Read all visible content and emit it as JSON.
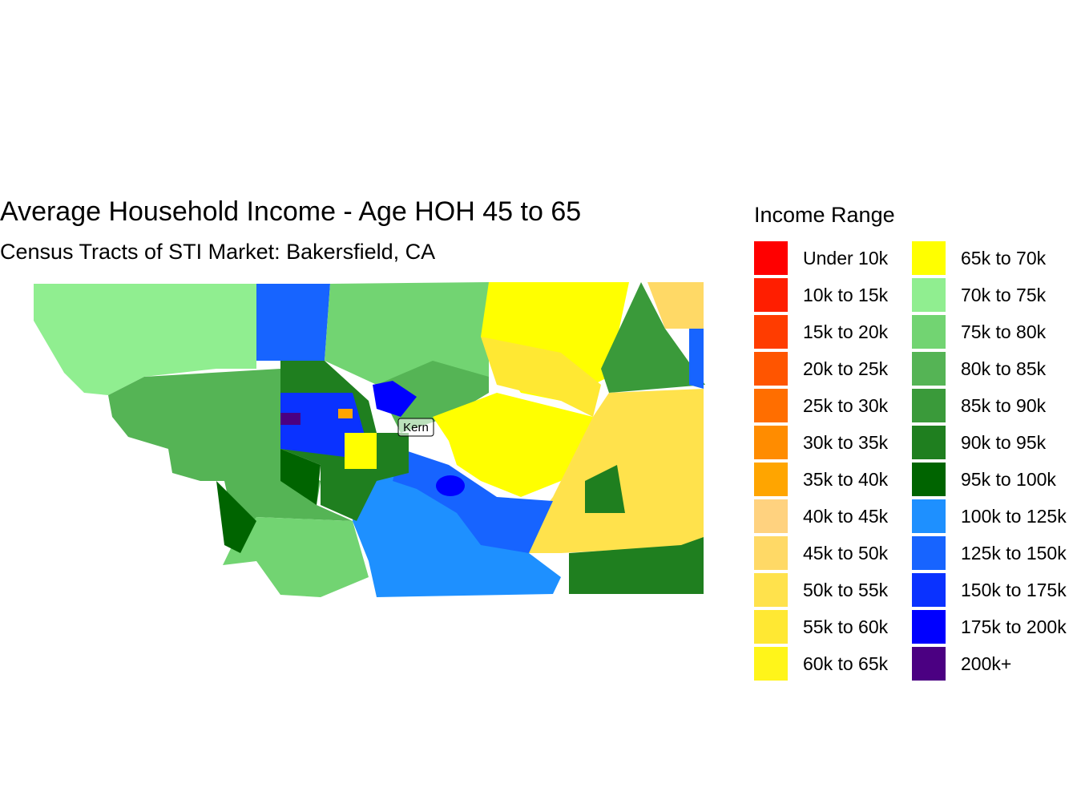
{
  "title": "Average Household Income - Age HOH 45 to 65",
  "subtitle": "Census Tracts of STI Market: Bakersfield, CA",
  "labels": [
    "Kern"
  ],
  "legend": {
    "title": "Income Range",
    "items": [
      {
        "name": "Under 10k",
        "color": "#ff0000"
      },
      {
        "name": "10k to 15k",
        "color": "#ff1e00"
      },
      {
        "name": "15k to 20k",
        "color": "#ff3c00"
      },
      {
        "name": "20k to 25k",
        "color": "#ff5500"
      },
      {
        "name": "25k to 30k",
        "color": "#ff6e00"
      },
      {
        "name": "30k to 35k",
        "color": "#ff8c00"
      },
      {
        "name": "35k to 40k",
        "color": "#ffa500"
      },
      {
        "name": "40k to 45k",
        "color": "#ffd27f"
      },
      {
        "name": "45k to 50k",
        "color": "#ffd966"
      },
      {
        "name": "50k to 55k",
        "color": "#ffe24c"
      },
      {
        "name": "55k to 60k",
        "color": "#ffe833"
      },
      {
        "name": "60k to 65k",
        "color": "#fff51a"
      },
      {
        "name": "65k to 70k",
        "color": "#ffff00"
      },
      {
        "name": "70k to 75k",
        "color": "#90ee90"
      },
      {
        "name": "75k to 80k",
        "color": "#72d472"
      },
      {
        "name": "80k to 85k",
        "color": "#55b455"
      },
      {
        "name": "85k to 90k",
        "color": "#3a9a3a"
      },
      {
        "name": "90k to 95k",
        "color": "#1f7f1f"
      },
      {
        "name": "95k to 100k",
        "color": "#006400"
      },
      {
        "name": "100k to 125k",
        "color": "#1e90ff"
      },
      {
        "name": "125k to 150k",
        "color": "#1764ff"
      },
      {
        "name": "150k to 175k",
        "color": "#0a32ff"
      },
      {
        "name": "175k to 200k",
        "color": "#0000ff"
      },
      {
        "name": "200k+",
        "color": "#4b0082"
      }
    ]
  }
}
